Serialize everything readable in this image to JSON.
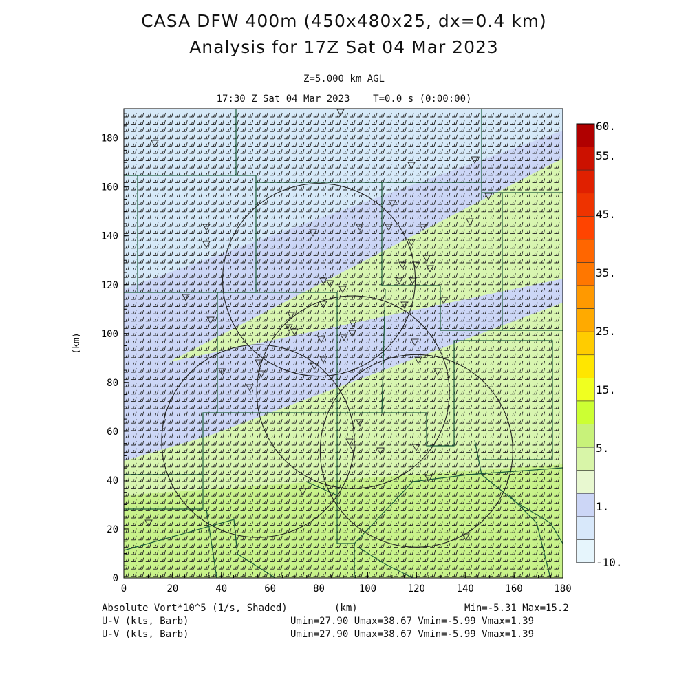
{
  "header": {
    "title_line1": "CASA DFW 400m (450x480x25, dx=0.4 km)",
    "title_line2": "Analysis for 17Z Sat 04 Mar 2023",
    "level": "Z=5.000 km AGL",
    "valid_time": "17:30 Z Sat 04 Mar 2023    T=0.0 s (0:00:00)"
  },
  "footer": {
    "field1": "Absolute Vort*10^5 (1/s, Shaded)",
    "xunit": "(km)",
    "field1_range": "Min=-5.31 Max=15.2",
    "field2": "U-V (kts, Barb)",
    "field2_range": "Umin=27.90 Umax=38.67 Vmin=-5.99 Vmax=1.39",
    "field3": "U-V (kts, Barb)",
    "field3_range": "Umin=27.90 Umax=38.67 Vmin=-5.99 Vmax=1.39"
  },
  "chart_data": {
    "type": "heatmap",
    "field": "Absolute Vort*10^5 (1/s, Shaded)",
    "xlabel": "",
    "ylabel": "(km)",
    "xlim": [
      0,
      180
    ],
    "ylim": [
      0,
      192
    ],
    "xticks": [
      0,
      20,
      40,
      60,
      80,
      100,
      120,
      140,
      160,
      180
    ],
    "yticks": [
      0,
      20,
      40,
      60,
      80,
      100,
      120,
      140,
      160,
      180
    ],
    "min": -5.31,
    "max": 15.2,
    "colorbar": {
      "labels": [
        "60.",
        "55.",
        "45.",
        "35.",
        "25.",
        "15.",
        "5.",
        "1.",
        "-10."
      ],
      "colors": [
        "#b00000",
        "#cc1100",
        "#e02000",
        "#ee3300",
        "#ff4400",
        "#ff6600",
        "#ff7700",
        "#ff9900",
        "#ffaa00",
        "#ffcc00",
        "#ffe600",
        "#f0ff20",
        "#ccff33",
        "#c8f27a",
        "#d8f5a8",
        "#e8f8d0",
        "#ccd6f6",
        "#d8e8fa",
        "#e6f5fc"
      ]
    },
    "bands": [
      {
        "name": "light-blue",
        "color": "#d6e9f8"
      },
      {
        "name": "lavender",
        "color": "#ccd6f6"
      },
      {
        "name": "pale-green",
        "color": "#d8f5b0"
      },
      {
        "name": "green",
        "color": "#c8f28a"
      }
    ],
    "wind_barbs": {
      "u_kts_range": [
        27.9,
        38.67
      ],
      "v_kts_range": [
        -5.99,
        1.39
      ]
    },
    "range_rings_center_km": [
      [
        80,
        122
      ],
      [
        94,
        76
      ],
      [
        55,
        56
      ],
      [
        120,
        52
      ]
    ],
    "range_ring_radius_km": 40
  },
  "colors": {
    "county_lines": "#1a5c3a",
    "frame": "#000000"
  }
}
